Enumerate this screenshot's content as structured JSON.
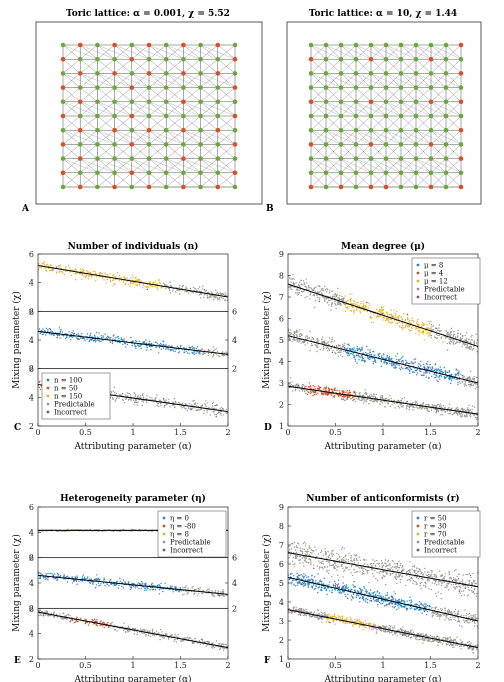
{
  "lattices": [
    {
      "panel": "A",
      "title": "Toric lattice: α = 0.001, χ = 5.52",
      "alpha": 0.001,
      "chi": 5.52,
      "grid_n": 11
    },
    {
      "panel": "B",
      "title": "Toric lattice: α = 10, χ = 1.44",
      "alpha": 10,
      "chi": 1.44,
      "grid_n": 11
    }
  ],
  "colors": {
    "node_green": "#6aa83c",
    "node_red": "#d8502a",
    "blue": "#2a84c8",
    "red": "#d4501e",
    "yellow": "#e6b32a",
    "gray": "#9a9a92",
    "purple": "#8a4a9c",
    "fit": "#000000"
  },
  "chart_data": [
    {
      "panel": "C",
      "type": "scatter",
      "title": "Number of individuals (n)",
      "xlabel": "Attributing parameter (α)",
      "ylabel": "Mixing parameter (χ)",
      "xlim": [
        0,
        2
      ],
      "xticks": [
        "0",
        "0.5",
        "1",
        "1.5",
        "2"
      ],
      "layout": "stacked",
      "legend_position": "lower-left",
      "legend": [
        {
          "label": "n = 100",
          "color": "#2a84c8"
        },
        {
          "label": "n = 50",
          "color": "#d4501e"
        },
        {
          "label": "n = 150",
          "color": "#e6b32a"
        },
        {
          "label": "Predictable",
          "color": "#9a9a92"
        },
        {
          "label": "Incorrect",
          "color": "#8a4a9c"
        }
      ],
      "subplots": [
        {
          "ylim": [
            2,
            6
          ],
          "yticks_left": [
            "2",
            "4",
            "6"
          ],
          "yticks_right": [],
          "series": "n = 150",
          "color": "#e6b32a",
          "highlight_x": [
            0,
            1.3
          ],
          "fit": [
            [
              0,
              5.2
            ],
            [
              2,
              3.0
            ]
          ],
          "spread": 0.3
        },
        {
          "ylim": [
            2,
            6
          ],
          "yticks_left": [
            "2",
            "4",
            "6"
          ],
          "yticks_right": [
            "2",
            "4",
            "6"
          ],
          "series": "n = 100",
          "color": "#2a84c8",
          "highlight_x": [
            0,
            1.7
          ],
          "fit": [
            [
              0,
              4.6
            ],
            [
              2,
              3.0
            ]
          ],
          "spread": 0.28
        },
        {
          "ylim": [
            2,
            6
          ],
          "yticks_left": [
            "2",
            "4",
            "6"
          ],
          "yticks_right": [],
          "series": "n = 50",
          "color": "#d4501e",
          "highlight_x": [
            0,
            0.6
          ],
          "fit": [
            [
              0,
              4.9
            ],
            [
              2,
              3.0
            ]
          ],
          "spread": 0.35
        }
      ]
    },
    {
      "panel": "D",
      "type": "scatter",
      "title": "Mean degree (μ)",
      "xlabel": "Attributing parameter (α)",
      "ylabel": "Mixing parameter (χ)",
      "xlim": [
        0,
        2
      ],
      "ylim": [
        1,
        9
      ],
      "xticks": [
        "0",
        "0.5",
        "1",
        "1.5",
        "2"
      ],
      "yticks": [
        "1",
        "2",
        "3",
        "4",
        "5",
        "6",
        "7",
        "8",
        "9"
      ],
      "layout": "single",
      "legend_position": "top-right",
      "legend": [
        {
          "label": "μ = 8",
          "color": "#2a84c8"
        },
        {
          "label": "μ = 4",
          "color": "#d4501e"
        },
        {
          "label": "μ = 12",
          "color": "#e6b32a"
        },
        {
          "label": "Predictable",
          "color": "#9a9a92"
        },
        {
          "label": "Incorrect",
          "color": "#8a4a9c"
        }
      ],
      "series": [
        {
          "name": "μ = 12",
          "color": "#e6b32a",
          "highlight_x": [
            0.6,
            1.5
          ],
          "fit": [
            [
              0,
              7.6
            ],
            [
              2,
              4.7
            ]
          ],
          "spread": 0.35
        },
        {
          "name": "μ = 8",
          "color": "#2a84c8",
          "highlight_x": [
            0.6,
            1.8
          ],
          "fit": [
            [
              0,
              5.2
            ],
            [
              2,
              3.0
            ]
          ],
          "spread": 0.3
        },
        {
          "name": "μ = 4",
          "color": "#d4501e",
          "highlight_x": [
            0.2,
            0.7
          ],
          "fit": [
            [
              0,
              2.85
            ],
            [
              2,
              1.55
            ]
          ],
          "spread": 0.2
        }
      ]
    },
    {
      "panel": "E",
      "type": "scatter",
      "title": "Heterogeneity parameter (η)",
      "xlabel": "Attributing parameter (α)",
      "ylabel": "Mixing parameter (χ)",
      "xlim": [
        0,
        2
      ],
      "xticks": [
        "0",
        "0.5",
        "1",
        "1.5",
        "2"
      ],
      "layout": "stacked",
      "legend_position": "top-right",
      "legend": [
        {
          "label": "η = 0",
          "color": "#2a84c8"
        },
        {
          "label": "η = -80",
          "color": "#d4501e"
        },
        {
          "label": "η = 8",
          "color": "#e6b32a"
        },
        {
          "label": "Predictable",
          "color": "#9a9a92"
        },
        {
          "label": "Incorrect",
          "color": "#8a4a9c"
        }
      ],
      "subplots": [
        {
          "ylim": [
            2,
            6
          ],
          "yticks_left": [
            "2",
            "4",
            "6"
          ],
          "yticks_right": [],
          "series": "η = 8",
          "color": "#e6b32a",
          "highlight_x": [
            0,
            0
          ],
          "fit": [
            [
              0,
              4.15
            ],
            [
              2,
              4.15
            ]
          ],
          "spread": 0.05
        },
        {
          "ylim": [
            2,
            6
          ],
          "yticks_left": [
            "2",
            "4",
            "6"
          ],
          "yticks_right": [
            "2",
            "4",
            "6"
          ],
          "series": "η = 0",
          "color": "#2a84c8",
          "highlight_x": [
            0,
            1.5
          ],
          "fit": [
            [
              0,
              4.6
            ],
            [
              2,
              3.1
            ]
          ],
          "spread": 0.28
        },
        {
          "ylim": [
            2,
            6
          ],
          "yticks_left": [
            "2",
            "4",
            "6"
          ],
          "yticks_right": [],
          "series": "η = -80",
          "color": "#d4501e",
          "highlight_x": [
            0.35,
            0.75
          ],
          "fit": [
            [
              0,
              5.7
            ],
            [
              2,
              2.9
            ]
          ],
          "spread": 0.25
        }
      ]
    },
    {
      "panel": "F",
      "type": "scatter",
      "title": "Number of anticonformists (r)",
      "xlabel": "Attributing parameter (α)",
      "ylabel": "Mixing parameter (χ)",
      "xlim": [
        0,
        2
      ],
      "ylim": [
        1,
        9
      ],
      "xticks": [
        "0",
        "0.5",
        "1",
        "1.5",
        "2"
      ],
      "yticks": [
        "1",
        "2",
        "3",
        "4",
        "5",
        "6",
        "7",
        "8",
        "9"
      ],
      "layout": "single",
      "legend_position": "top-right",
      "legend": [
        {
          "label": "r = 50",
          "color": "#2a84c8"
        },
        {
          "label": "r = 30",
          "color": "#d4501e"
        },
        {
          "label": "r = 70",
          "color": "#e6b32a"
        },
        {
          "label": "Predictable",
          "color": "#9a9a92"
        },
        {
          "label": "Incorrect",
          "color": "#8a4a9c"
        }
      ],
      "series": [
        {
          "name": "r = 30",
          "color": "#d4501e",
          "highlight_x": [
            0,
            0
          ],
          "fit": [
            [
              0,
              6.6
            ],
            [
              2,
              4.8
            ]
          ],
          "spread": 0.55
        },
        {
          "name": "r = 50",
          "color": "#2a84c8",
          "highlight_x": [
            0,
            1.5
          ],
          "fit": [
            [
              0,
              5.3
            ],
            [
              2,
              3.0
            ]
          ],
          "spread": 0.32
        },
        {
          "name": "r = 70",
          "color": "#e6b32a",
          "highlight_x": [
            0.4,
            0.9
          ],
          "fit": [
            [
              0,
              3.6
            ],
            [
              2,
              1.6
            ]
          ],
          "spread": 0.2
        }
      ]
    }
  ]
}
